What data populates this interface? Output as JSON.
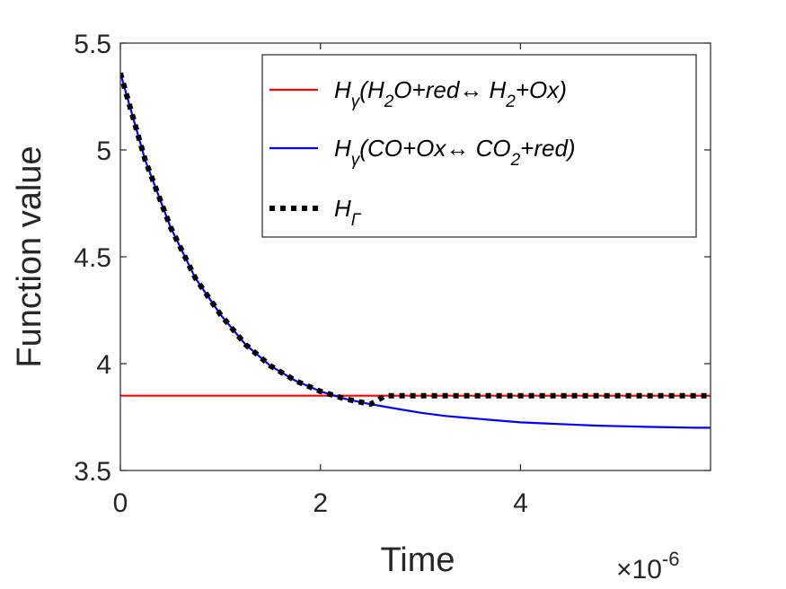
{
  "chart_data": {
    "type": "line",
    "xlabel": "Time",
    "ylabel": "Function value",
    "x_exponent_label": "×10",
    "x_exponent_power": "-6",
    "xlim": [
      0,
      5.9
    ],
    "ylim": [
      3.5,
      5.5
    ],
    "xticks": [
      0,
      2,
      4
    ],
    "xtick_labels": [
      "0",
      "2",
      "4"
    ],
    "yticks": [
      3.5,
      4,
      4.5,
      5,
      5.5
    ],
    "ytick_labels": [
      "3.5",
      "4",
      "4.5",
      "5",
      "5.5"
    ],
    "grid": false,
    "legend_position": "top-right",
    "series": [
      {
        "name": "Hγ(H2O+red↔ H2+Ox)",
        "color": "#ff0000",
        "style": "solid",
        "legend_parts": [
          [
            "H",
            ""
          ],
          [
            "γ",
            "sub"
          ],
          [
            "(H",
            ""
          ],
          [
            "2",
            "sub"
          ],
          [
            "O+red↔ H",
            ""
          ],
          [
            "2",
            "sub"
          ],
          [
            "+Ox)",
            ""
          ]
        ],
        "x": [
          0,
          1,
          2,
          3,
          4,
          5,
          5.9
        ],
        "y": [
          3.85,
          3.85,
          3.85,
          3.85,
          3.85,
          3.85,
          3.85
        ]
      },
      {
        "name": "Hγ(CO+Ox↔ CO2+red)",
        "color": "#0000ff",
        "style": "solid",
        "legend_parts": [
          [
            "H",
            ""
          ],
          [
            "γ",
            "sub"
          ],
          [
            "(CO+Ox↔ CO",
            ""
          ],
          [
            "2",
            "sub"
          ],
          [
            "+red)",
            ""
          ]
        ],
        "x": [
          0,
          0.25,
          0.5,
          0.75,
          1.0,
          1.25,
          1.5,
          1.75,
          2.0,
          2.25,
          2.5,
          2.75,
          3.0,
          3.25,
          3.5,
          3.75,
          4.0,
          4.25,
          4.5,
          4.75,
          5.0,
          5.25,
          5.5,
          5.75,
          5.9
        ],
        "y": [
          5.36,
          4.95,
          4.64,
          4.4,
          4.23,
          4.09,
          3.99,
          3.92,
          3.87,
          3.835,
          3.81,
          3.79,
          3.77,
          3.755,
          3.745,
          3.735,
          3.725,
          3.72,
          3.715,
          3.71,
          3.707,
          3.704,
          3.702,
          3.7,
          3.7
        ]
      },
      {
        "name": "HΓ",
        "color": "#000000",
        "style": "dotted",
        "legend_parts": [
          [
            "H",
            ""
          ],
          [
            "Γ",
            "sub"
          ]
        ],
        "x": [
          0,
          0.25,
          0.5,
          0.75,
          1.0,
          1.25,
          1.5,
          1.75,
          2.0,
          2.25,
          2.5,
          2.65,
          3.0,
          3.5,
          4.0,
          4.5,
          5.0,
          5.5,
          5.9
        ],
        "y": [
          5.36,
          4.95,
          4.64,
          4.4,
          4.23,
          4.09,
          3.99,
          3.92,
          3.87,
          3.835,
          3.81,
          3.85,
          3.85,
          3.85,
          3.85,
          3.85,
          3.85,
          3.85,
          3.85
        ]
      }
    ]
  }
}
